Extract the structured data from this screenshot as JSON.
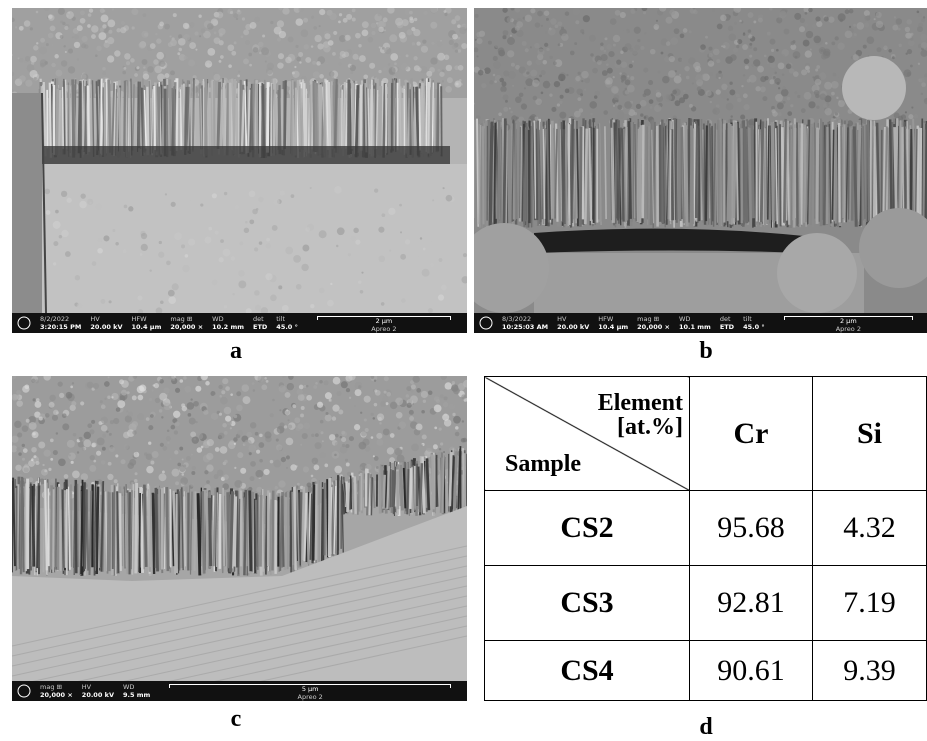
{
  "panels": [
    {
      "label": "a",
      "info": [
        {
          "head": "8/2/2022",
          "value": "3:20:15 PM"
        },
        {
          "head": "HV",
          "value": "20.00 kV"
        },
        {
          "head": "HFW",
          "value": "10.4 μm"
        },
        {
          "head": "mag ⊞",
          "value": "20,000 ×"
        },
        {
          "head": "WD",
          "value": "10.2 mm"
        },
        {
          "head": "det",
          "value": "ETD"
        },
        {
          "head": "tilt",
          "value": "45.0 °"
        }
      ],
      "scale": "2 μm",
      "instrument": "Apreo 2"
    },
    {
      "label": "b",
      "info": [
        {
          "head": "8/3/2022",
          "value": "10:25:03 AM"
        },
        {
          "head": "HV",
          "value": "20.00 kV"
        },
        {
          "head": "HFW",
          "value": "10.4 μm"
        },
        {
          "head": "mag ⊞",
          "value": "20,000 ×"
        },
        {
          "head": "WD",
          "value": "10.1 mm"
        },
        {
          "head": "det",
          "value": "ETD"
        },
        {
          "head": "tilt",
          "value": "45.0 °"
        }
      ],
      "scale": "2 μm",
      "instrument": "Apreo 2"
    },
    {
      "label": "c",
      "info": [
        {
          "head": "mag ⊞",
          "value": "20,000 ×"
        },
        {
          "head": "HV",
          "value": "20.00 kV"
        },
        {
          "head": "WD",
          "value": "9.5 mm"
        }
      ],
      "scale": "5 μm",
      "instrument": "Apreo 2"
    }
  ],
  "table": {
    "label": "d",
    "header": {
      "element": "Element",
      "unit": "[at.%]",
      "sample": "Sample",
      "columns": [
        "Cr",
        "Si"
      ]
    },
    "rows": [
      [
        "CS2",
        95.68,
        4.32
      ],
      [
        "CS3",
        92.81,
        7.19
      ],
      [
        "CS4",
        90.61,
        9.39
      ]
    ]
  }
}
